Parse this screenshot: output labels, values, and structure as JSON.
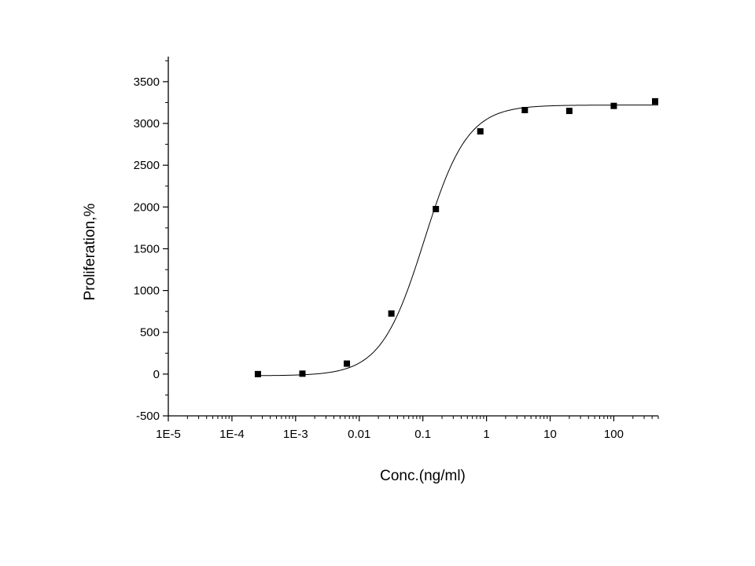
{
  "chart_data": {
    "type": "scatter",
    "title": "",
    "xlabel": "Conc.(ng/ml)",
    "ylabel": "Proliferation,%",
    "x_scale": "log",
    "xlim": [
      1e-05,
      500
    ],
    "ylim": [
      -500,
      3800
    ],
    "x_ticks": [
      {
        "value": 1e-05,
        "label": "1E-5"
      },
      {
        "value": 0.0001,
        "label": "1E-4"
      },
      {
        "value": 0.001,
        "label": "1E-3"
      },
      {
        "value": 0.01,
        "label": "0.01"
      },
      {
        "value": 0.1,
        "label": "0.1"
      },
      {
        "value": 1,
        "label": "1"
      },
      {
        "value": 10,
        "label": "10"
      },
      {
        "value": 100,
        "label": "100"
      }
    ],
    "y_ticks": [
      {
        "value": -500,
        "label": "-500"
      },
      {
        "value": 0,
        "label": "0"
      },
      {
        "value": 500,
        "label": "500"
      },
      {
        "value": 1000,
        "label": "1000"
      },
      {
        "value": 1500,
        "label": "1500"
      },
      {
        "value": 2000,
        "label": "2000"
      },
      {
        "value": 2500,
        "label": "2500"
      },
      {
        "value": 3000,
        "label": "3000"
      },
      {
        "value": 3500,
        "label": "3500"
      }
    ],
    "grid": false,
    "legend": "none",
    "series": [
      {
        "marker": "square",
        "color": "#000000",
        "points": [
          {
            "x": 0.000256,
            "y": 0
          },
          {
            "x": 0.00128,
            "y": 5
          },
          {
            "x": 0.0064,
            "y": 125
          },
          {
            "x": 0.032,
            "y": 725
          },
          {
            "x": 0.16,
            "y": 1975
          },
          {
            "x": 0.8,
            "y": 2905
          },
          {
            "x": 4,
            "y": 3160
          },
          {
            "x": 20,
            "y": 3150
          },
          {
            "x": 100,
            "y": 3210
          },
          {
            "x": 500,
            "y": 3265
          }
        ]
      }
    ],
    "fit_curve": {
      "type": "4PL",
      "bottom": -20,
      "top": 3220,
      "ec50": 0.105,
      "hill": 1.28,
      "color": "#000000"
    }
  }
}
